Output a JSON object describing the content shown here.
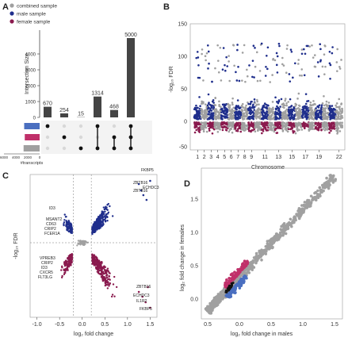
{
  "colors": {
    "combined": "#a0a0a0",
    "male": "#1f2e8c",
    "female": "#8a1a4e",
    "male_light": "#4a6fc0",
    "female_light": "#c0306a",
    "bar": "#444444"
  },
  "chart_data": [
    {
      "panel": "A",
      "type": "bar",
      "title": "",
      "ylabel": "Intersection Size",
      "ylim": [
        0,
        5500
      ],
      "yticks": [
        "0",
        "1000",
        "2000",
        "3000",
        "4000"
      ],
      "categories": [
        "c1",
        "c2",
        "c3",
        "c4",
        "c5",
        "c6"
      ],
      "values": [
        670,
        254,
        15,
        1314,
        468,
        5000
      ],
      "value_labels": [
        "670",
        "254",
        "15",
        "1314",
        "468",
        "5000"
      ],
      "legend": [
        "combined sample",
        "male sample",
        "female sample"
      ],
      "set_size_label": "#transcripts",
      "set_size_ticks": [
        "6000",
        "4000",
        "2000",
        "0"
      ],
      "sets": [
        {
          "name": "male",
          "color": "#4a6fc0",
          "size": 2600
        },
        {
          "name": "female",
          "color": "#c0306a",
          "size": 2500
        },
        {
          "name": "combined",
          "color": "#a0a0a0",
          "size": 2700
        }
      ],
      "matrix": [
        {
          "col": 0,
          "rows": [
            0
          ]
        },
        {
          "col": 1,
          "rows": [
            1
          ]
        },
        {
          "col": 2,
          "rows": [
            2
          ]
        },
        {
          "col": 3,
          "rows": [
            0,
            2
          ]
        },
        {
          "col": 4,
          "rows": [
            1,
            2
          ]
        },
        {
          "col": 5,
          "rows": [
            0,
            1,
            2
          ]
        }
      ]
    },
    {
      "panel": "B",
      "type": "scatter",
      "title": "",
      "xlabel": "Chromosome",
      "ylabel": "-log₁₀ FDR",
      "ylim": [
        -100,
        150
      ],
      "yticks": [
        -50,
        0,
        50,
        100,
        150
      ],
      "xticks": [
        "1",
        "2",
        "3",
        "4",
        "5",
        "6",
        "7",
        "8",
        "9",
        "11",
        "13",
        "15",
        "17",
        "19",
        "22"
      ],
      "n_chromosomes": 22
    },
    {
      "panel": "C",
      "type": "scatter",
      "title": "",
      "xlabel": "log₂ fold change",
      "ylabel": "-log₁₀ FDR",
      "xlim": [
        -1.15,
        1.65
      ],
      "xticks": [
        "-1.0",
        "-0.5",
        "0.0",
        "0.5",
        "1.0",
        "1.5"
      ],
      "threshold_x": [
        -0.2,
        0.2
      ],
      "annotations_up": [
        "FKBP5",
        "ZBTB16",
        "ECHDC3",
        "ZBTB16",
        "ID3",
        "MSANT2",
        "CD63",
        "CRIP2",
        "FCER1A"
      ],
      "annotations_down": [
        "VPREB3",
        "CRIP2",
        "ID3",
        "CXCR5",
        "FLT3LG",
        "ZBTB16",
        "ECHDC3",
        "IL1R2",
        "FKBP5"
      ]
    },
    {
      "panel": "D",
      "type": "scatter",
      "title": "",
      "xlabel": "log₂ fold change in males",
      "ylabel": "log₂ fold change in females",
      "xticks": [
        "0.5",
        "0.0",
        "0.5",
        "1.0",
        "1.5"
      ],
      "yticks": [
        "0.0",
        "0.5",
        "1.0",
        "1.5"
      ]
    }
  ]
}
